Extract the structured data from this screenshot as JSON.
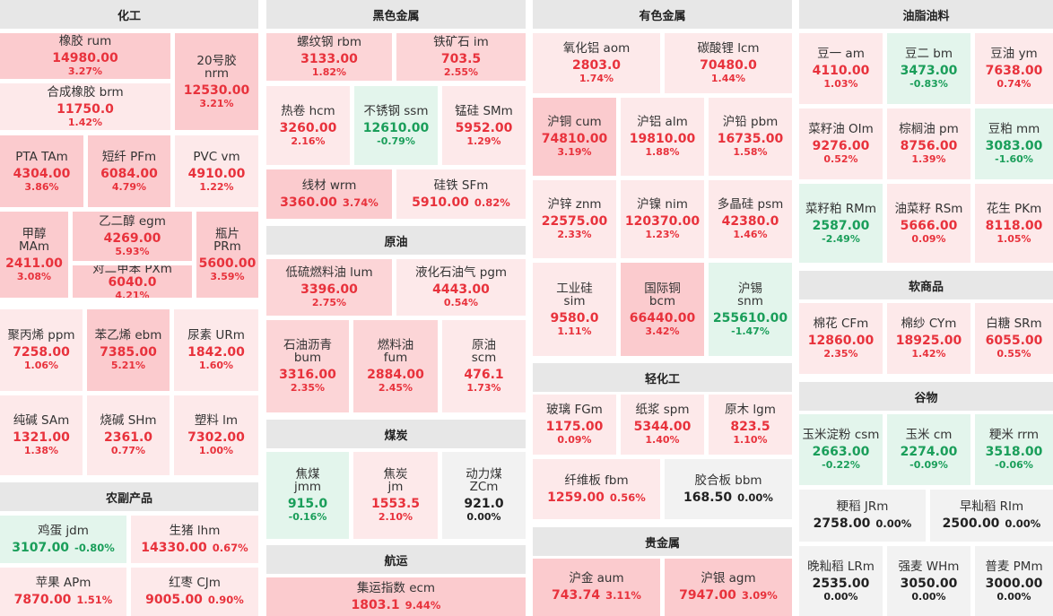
{
  "colors": {
    "up": "#e8323c",
    "down": "#1a9e5a",
    "flat": "#222222",
    "header_bg": "#e7e7e7"
  },
  "sections": {
    "chem": "化工",
    "black": "黑色金属",
    "nonferrous": "有色金属",
    "oils": "油脂油料",
    "crude": "原油",
    "coal": "煤炭",
    "shipping": "航运",
    "agri": "农副产品",
    "light": "轻化工",
    "precious": "贵金属",
    "soft": "软商品",
    "grain": "谷物"
  },
  "items": {
    "rum": {
      "name": "橡胶  rum",
      "price": "14980.00",
      "pct": "3.27%"
    },
    "nrm": {
      "name1": "20号胶",
      "name2": "nrm",
      "price": "12530.00",
      "pct": "3.21%"
    },
    "brm": {
      "name": "合成橡胶  brm",
      "price": "11750.0",
      "pct": "1.42%"
    },
    "tam": {
      "name": "PTA  TAm",
      "price": "4304.00",
      "pct": "3.86%"
    },
    "pfm": {
      "name": "短纤  PFm",
      "price": "6084.00",
      "pct": "4.79%"
    },
    "vm": {
      "name": "PVC  vm",
      "price": "4910.00",
      "pct": "1.22%"
    },
    "mam": {
      "name1": "甲醇",
      "name2": "MAm",
      "price": "2411.00",
      "pct": "3.08%"
    },
    "egm": {
      "name": "乙二醇  egm",
      "price": "4269.00",
      "pct": "5.93%"
    },
    "prm": {
      "name1": "瓶片",
      "name2": "PRm",
      "price": "5600.00",
      "pct": "3.59%"
    },
    "pxm": {
      "name": "对二甲苯  PXm",
      "price": "6040.0",
      "pct": "4.21%"
    },
    "ppm": {
      "name": "聚丙烯  ppm",
      "price": "7258.00",
      "pct": "1.06%"
    },
    "ebm": {
      "name": "苯乙烯  ebm",
      "price": "7385.00",
      "pct": "5.21%"
    },
    "urm": {
      "name": "尿素  URm",
      "price": "1842.00",
      "pct": "1.60%"
    },
    "sam": {
      "name": "纯碱  SAm",
      "price": "1321.00",
      "pct": "1.38%"
    },
    "shm": {
      "name": "烧碱  SHm",
      "price": "2361.0",
      "pct": "0.77%"
    },
    "lm": {
      "name": "塑料  lm",
      "price": "7302.00",
      "pct": "1.00%"
    },
    "jdm": {
      "name": "鸡蛋  jdm",
      "price": "3107.00",
      "pct": "-0.80%"
    },
    "lhm": {
      "name": "生猪  lhm",
      "price": "14330.00",
      "pct": "0.67%"
    },
    "apm": {
      "name": "苹果  APm",
      "price": "7870.00",
      "pct": "1.51%"
    },
    "cjm": {
      "name": "红枣  CJm",
      "price": "9005.00",
      "pct": "0.90%"
    },
    "rbm": {
      "name": "螺纹钢  rbm",
      "price": "3133.00",
      "pct": "1.82%"
    },
    "im": {
      "name": "铁矿石  im",
      "price": "703.5",
      "pct": "2.55%"
    },
    "hcm": {
      "name": "热卷  hcm",
      "price": "3260.00",
      "pct": "2.16%"
    },
    "ssm": {
      "name": "不锈钢  ssm",
      "price": "12610.00",
      "pct": "-0.79%"
    },
    "smm": {
      "name": "锰硅  SMm",
      "price": "5952.00",
      "pct": "1.29%"
    },
    "wrm": {
      "name": "线材  wrm",
      "price": "3360.00",
      "pct": "3.74%"
    },
    "sfm": {
      "name": "硅铁  SFm",
      "price": "5910.00",
      "pct": "0.82%"
    },
    "lum": {
      "name": "低硫燃料油  lum",
      "price": "3396.00",
      "pct": "2.75%"
    },
    "pgm": {
      "name": "液化石油气  pgm",
      "price": "4443.00",
      "pct": "0.54%"
    },
    "bum": {
      "name1": "石油沥青",
      "name2": "bum",
      "price": "3316.00",
      "pct": "2.35%"
    },
    "fum": {
      "name1": "燃料油",
      "name2": "fum",
      "price": "2884.00",
      "pct": "2.45%"
    },
    "scm": {
      "name1": "原油",
      "name2": "scm",
      "price": "476.1",
      "pct": "1.73%"
    },
    "jmm": {
      "name1": "焦煤",
      "name2": "jmm",
      "price": "915.0",
      "pct": "-0.16%"
    },
    "jm": {
      "name1": "焦炭",
      "name2": "jm",
      "price": "1553.5",
      "pct": "2.10%"
    },
    "zcm": {
      "name1": "动力煤",
      "name2": "ZCm",
      "price": "921.0",
      "pct": "0.00%"
    },
    "ecm": {
      "name": "集运指数  ecm",
      "price": "1803.1",
      "pct": "9.44%"
    },
    "aom": {
      "name": "氧化铝  aom",
      "price": "2803.0",
      "pct": "1.74%"
    },
    "lcm": {
      "name": "碳酸锂  lcm",
      "price": "70480.0",
      "pct": "1.44%"
    },
    "cum": {
      "name": "沪铜  cum",
      "price": "74810.00",
      "pct": "3.19%"
    },
    "alm": {
      "name": "沪铝  alm",
      "price": "19810.00",
      "pct": "1.88%"
    },
    "pbm": {
      "name": "沪铅  pbm",
      "price": "16735.00",
      "pct": "1.58%"
    },
    "znm": {
      "name": "沪锌  znm",
      "price": "22575.00",
      "pct": "2.33%"
    },
    "nim": {
      "name": "沪镍  nim",
      "price": "120370.00",
      "pct": "1.23%"
    },
    "psm": {
      "name": "多晶硅  psm",
      "price": "42380.0",
      "pct": "1.46%"
    },
    "sim": {
      "name1": "工业硅",
      "name2": "sim",
      "price": "9580.0",
      "pct": "1.11%"
    },
    "bcm": {
      "name1": "国际铜",
      "name2": "bcm",
      "price": "66440.00",
      "pct": "3.42%"
    },
    "snm": {
      "name1": "沪锡",
      "name2": "snm",
      "price": "255610.00",
      "pct": "-1.47%"
    },
    "fgm": {
      "name": "玻璃  FGm",
      "price": "1175.00",
      "pct": "0.09%"
    },
    "spm": {
      "name": "纸浆  spm",
      "price": "5344.00",
      "pct": "1.40%"
    },
    "lgm": {
      "name": "原木  lgm",
      "price": "823.5",
      "pct": "1.10%"
    },
    "fbm": {
      "name": "纤维板  fbm",
      "price": "1259.00",
      "pct": "0.56%"
    },
    "bbm": {
      "name": "胶合板  bbm",
      "price": "168.50",
      "pct": "0.00%"
    },
    "aum": {
      "name": "沪金  aum",
      "price": "743.74",
      "pct": "3.11%"
    },
    "agm": {
      "name": "沪银  agm",
      "price": "7947.00",
      "pct": "3.09%"
    },
    "am": {
      "name": "豆一  am",
      "price": "4110.00",
      "pct": "1.03%"
    },
    "bm": {
      "name": "豆二  bm",
      "price": "3473.00",
      "pct": "-0.83%"
    },
    "ym": {
      "name": "豆油  ym",
      "price": "7638.00",
      "pct": "0.74%"
    },
    "oim": {
      "name": "菜籽油  OIm",
      "price": "9276.00",
      "pct": "0.52%"
    },
    "pm": {
      "name": "棕榈油  pm",
      "price": "8756.00",
      "pct": "1.39%"
    },
    "mm": {
      "name": "豆粕  mm",
      "price": "3083.00",
      "pct": "-1.60%"
    },
    "rmm": {
      "name": "菜籽粕  RMm",
      "price": "2587.00",
      "pct": "-2.49%"
    },
    "rsm": {
      "name": "油菜籽  RSm",
      "price": "5666.00",
      "pct": "0.09%"
    },
    "pkm": {
      "name": "花生  PKm",
      "price": "8118.00",
      "pct": "1.05%"
    },
    "cfm": {
      "name": "棉花  CFm",
      "price": "12860.00",
      "pct": "2.35%"
    },
    "cym": {
      "name": "棉纱  CYm",
      "price": "18925.00",
      "pct": "1.42%"
    },
    "srm": {
      "name": "白糖  SRm",
      "price": "6055.00",
      "pct": "0.55%"
    },
    "csm": {
      "name": "玉米淀粉  csm",
      "price": "2663.00",
      "pct": "-0.22%"
    },
    "cm": {
      "name": "玉米  cm",
      "price": "2274.00",
      "pct": "-0.09%"
    },
    "rrm": {
      "name": "粳米  rrm",
      "price": "3518.00",
      "pct": "-0.06%"
    },
    "jrm": {
      "name": "粳稻  JRm",
      "price": "2758.00",
      "pct": "0.00%"
    },
    "rim": {
      "name": "早籼稻  RIm",
      "price": "2500.00",
      "pct": "0.00%"
    },
    "lrm": {
      "name": "晚籼稻  LRm",
      "price": "2535.00",
      "pct": "0.00%"
    },
    "whm": {
      "name": "强麦  WHm",
      "price": "3050.00",
      "pct": "0.00%"
    },
    "pmm": {
      "name": "普麦  PMm",
      "price": "3000.00",
      "pct": "0.00%"
    }
  }
}
